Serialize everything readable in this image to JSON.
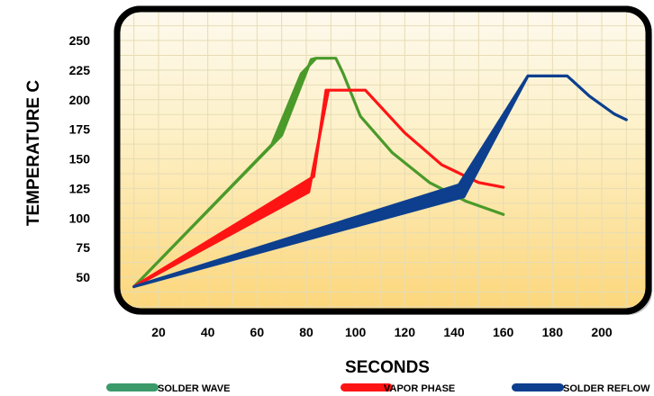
{
  "chart_data": {
    "type": "area",
    "xlabel": "SECONDS",
    "ylabel": "TEMPERATURE C",
    "xlim": [
      10,
      210
    ],
    "ylim": [
      25,
      260
    ],
    "x_ticks": [
      "20",
      "40",
      "60",
      "80",
      "100",
      "120",
      "140",
      "160",
      "180",
      "200"
    ],
    "y_ticks": [
      "50",
      "75",
      "100",
      "125",
      "150",
      "175",
      "200",
      "225",
      "250"
    ],
    "grid": true,
    "legend_position": "bottom",
    "background": {
      "top": "#fdf9ee",
      "bottom": "#fcd67a",
      "grid": "#e6dcb4"
    },
    "series": [
      {
        "name": "SOLDER WAVE",
        "color": "#4a9a2a",
        "legend_color": "#3a9a6a",
        "band_upper": [
          [
            10,
            42
          ],
          [
            70,
            170
          ],
          [
            82,
            234
          ],
          [
            84,
            235
          ],
          [
            92,
            235
          ],
          [
            95,
            222
          ],
          [
            102,
            186
          ],
          [
            115,
            155
          ],
          [
            130,
            130
          ],
          [
            145,
            114
          ],
          [
            160,
            103
          ]
        ],
        "band_lower": [
          [
            10,
            42
          ],
          [
            66,
            162
          ],
          [
            78,
            222
          ],
          [
            84,
            235
          ],
          [
            92,
            235
          ],
          [
            95,
            222
          ],
          [
            102,
            186
          ],
          [
            115,
            155
          ],
          [
            130,
            130
          ],
          [
            145,
            114
          ],
          [
            160,
            103
          ]
        ]
      },
      {
        "name": "VAPOR PHASE",
        "color": "#ff1414",
        "legend_color": "#ff1414",
        "band_upper": [
          [
            10,
            42
          ],
          [
            83,
            135
          ],
          [
            88,
            208
          ],
          [
            104,
            208
          ],
          [
            120,
            172
          ],
          [
            135,
            145
          ],
          [
            150,
            130
          ],
          [
            160,
            126
          ]
        ],
        "band_lower": [
          [
            10,
            42
          ],
          [
            81,
            122
          ],
          [
            89,
            208
          ],
          [
            104,
            208
          ],
          [
            120,
            172
          ],
          [
            135,
            145
          ],
          [
            150,
            130
          ],
          [
            160,
            126
          ]
        ]
      },
      {
        "name": "SOLDER REFLOW",
        "color": "#0d3f8e",
        "legend_color": "#0d3f8e",
        "band_upper": [
          [
            10,
            42
          ],
          [
            142,
            128
          ],
          [
            170,
            220
          ],
          [
            186,
            220
          ],
          [
            195,
            203
          ],
          [
            205,
            188
          ],
          [
            210,
            183
          ]
        ],
        "band_lower": [
          [
            10,
            42
          ],
          [
            144,
            118
          ],
          [
            170,
            220
          ],
          [
            186,
            220
          ],
          [
            195,
            203
          ],
          [
            205,
            188
          ],
          [
            210,
            183
          ]
        ]
      }
    ]
  }
}
